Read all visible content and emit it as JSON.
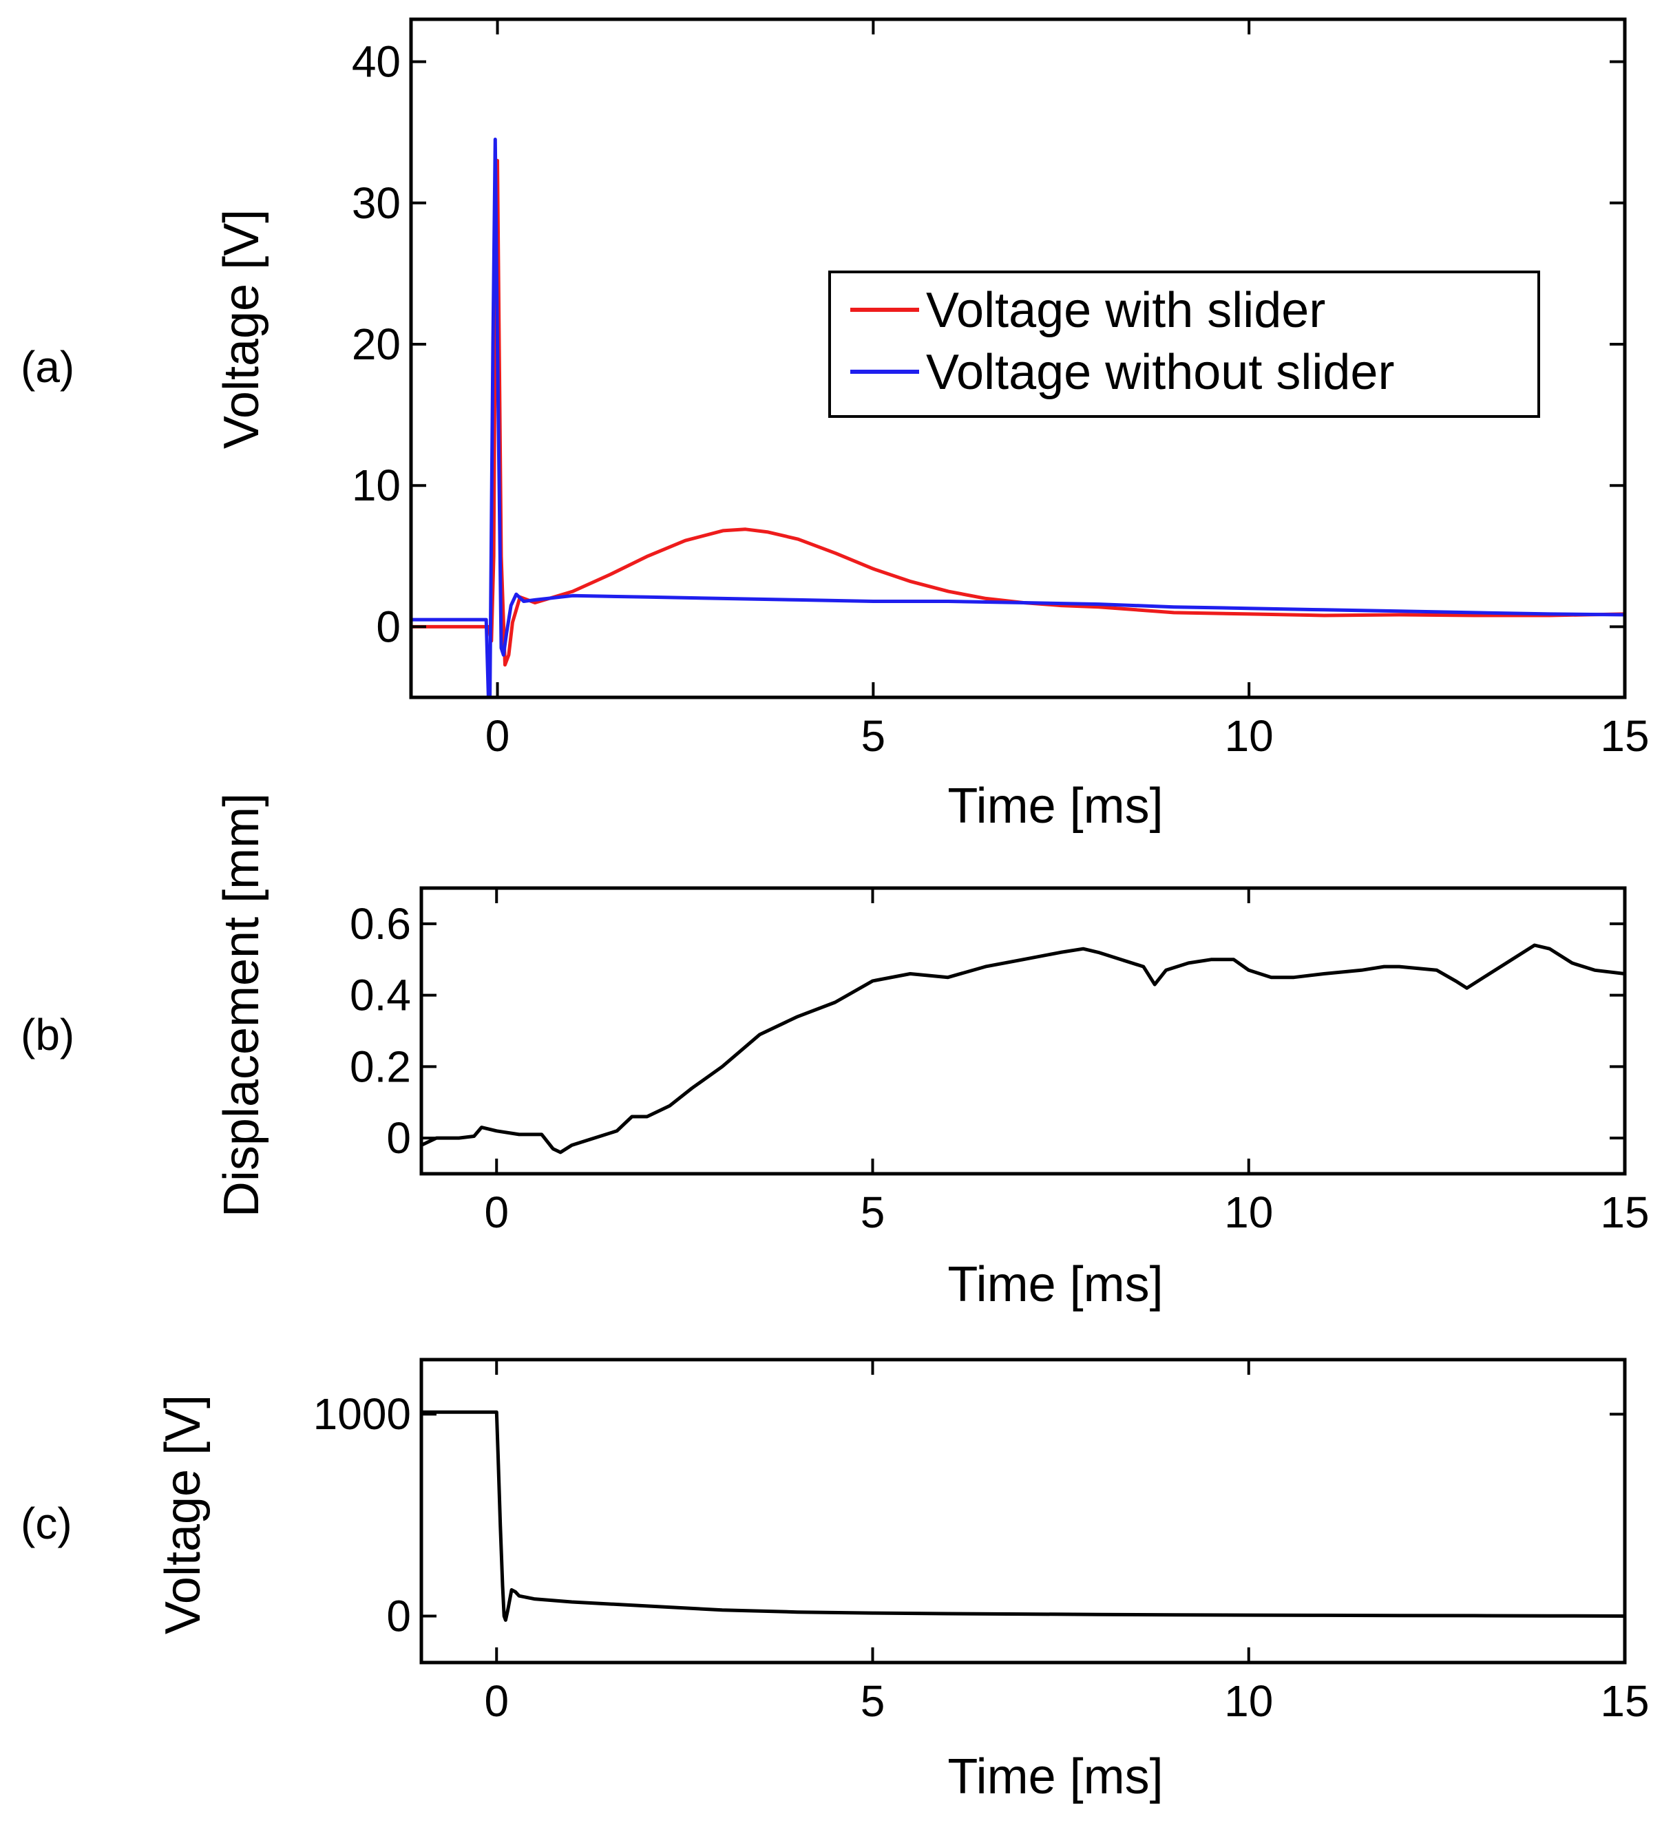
{
  "figure": {
    "panel_labels": [
      "(a)",
      "(b)",
      "(c)"
    ]
  },
  "colors": {
    "axes": "#000000",
    "voltage_with_slider": "#ee1c1c",
    "voltage_without_slider": "#1f1fee",
    "black_trace": "#000000"
  },
  "chart_data": [
    {
      "panel": "(a)",
      "type": "line",
      "title": "",
      "xlabel": "Time [ms]",
      "ylabel": "Voltage [V]",
      "xlim": [
        -1.15,
        15
      ],
      "ylim": [
        -5,
        43
      ],
      "xticks": [
        0,
        5,
        10,
        15
      ],
      "yticks": [
        0,
        10,
        20,
        30,
        40
      ],
      "legend": "right",
      "series": [
        {
          "name": "Voltage with slider",
          "color": "#ee1c1c",
          "x": [
            -1.15,
            -0.12,
            -0.08,
            -0.05,
            -0.02,
            0.0,
            0.05,
            0.1,
            0.15,
            0.2,
            0.3,
            0.5,
            1.0,
            1.5,
            2.0,
            2.5,
            3.0,
            3.3,
            3.6,
            4.0,
            4.5,
            5.0,
            5.5,
            6.0,
            6.5,
            7.0,
            7.5,
            8.0,
            8.5,
            9.0,
            10.0,
            11.0,
            12.0,
            13.0,
            14.0,
            15.0
          ],
          "y": [
            0.0,
            0.0,
            -1.0,
            5.0,
            30.0,
            33.0,
            5.0,
            -2.7,
            -2.0,
            0.3,
            2.1,
            1.7,
            2.5,
            3.7,
            5.0,
            6.1,
            6.8,
            6.9,
            6.7,
            6.2,
            5.2,
            4.1,
            3.2,
            2.5,
            2.0,
            1.7,
            1.5,
            1.4,
            1.2,
            1.0,
            0.9,
            0.8,
            0.85,
            0.8,
            0.8,
            0.9
          ]
        },
        {
          "name": "Voltage without slider",
          "color": "#1f1fee",
          "x": [
            -1.15,
            -0.15,
            -0.12,
            -0.1,
            -0.06,
            -0.03,
            0.0,
            0.05,
            0.08,
            0.12,
            0.18,
            0.25,
            0.35,
            0.5,
            1.0,
            2.0,
            3.0,
            4.0,
            5.0,
            6.0,
            7.0,
            8.0,
            9.0,
            10.0,
            11.0,
            12.0,
            13.0,
            14.0,
            15.0
          ],
          "y": [
            0.5,
            0.5,
            -5.0,
            -5.0,
            20.0,
            34.5,
            20.0,
            -1.5,
            -2.0,
            -0.5,
            1.5,
            2.3,
            1.8,
            1.9,
            2.2,
            2.1,
            2.0,
            1.9,
            1.8,
            1.8,
            1.7,
            1.6,
            1.4,
            1.3,
            1.2,
            1.1,
            1.0,
            0.9,
            0.85
          ]
        }
      ]
    },
    {
      "panel": "(b)",
      "type": "line",
      "title": "",
      "xlabel": "Time [ms]",
      "ylabel": "Displacement [mm]",
      "xlim": [
        -1.0,
        15
      ],
      "ylim": [
        -0.1,
        0.7
      ],
      "xticks": [
        0,
        5,
        10,
        15
      ],
      "yticks": [
        0,
        0.2,
        0.4,
        0.6
      ],
      "ytick_labels": [
        "0",
        "0.2",
        "0.4",
        "0.6"
      ],
      "series": [
        {
          "name": "Displacement",
          "color": "#000000",
          "x": [
            -1.0,
            -0.8,
            -0.5,
            -0.3,
            -0.2,
            0.0,
            0.3,
            0.6,
            0.75,
            0.85,
            1.0,
            1.3,
            1.6,
            1.8,
            2.0,
            2.3,
            2.6,
            3.0,
            3.5,
            4.0,
            4.5,
            5.0,
            5.5,
            6.0,
            6.5,
            7.0,
            7.5,
            7.8,
            8.0,
            8.3,
            8.6,
            8.75,
            8.9,
            9.2,
            9.5,
            9.8,
            10.0,
            10.3,
            10.6,
            11.0,
            11.5,
            11.8,
            12.0,
            12.5,
            12.75,
            12.9,
            13.2,
            13.5,
            13.8,
            14.0,
            14.3,
            14.6,
            15.0
          ],
          "y": [
            -0.02,
            0.0,
            0.0,
            0.005,
            0.03,
            0.02,
            0.01,
            0.01,
            -0.03,
            -0.04,
            -0.02,
            0.0,
            0.02,
            0.06,
            0.06,
            0.09,
            0.14,
            0.2,
            0.29,
            0.34,
            0.38,
            0.44,
            0.46,
            0.45,
            0.48,
            0.5,
            0.52,
            0.53,
            0.52,
            0.5,
            0.48,
            0.43,
            0.47,
            0.49,
            0.5,
            0.5,
            0.47,
            0.45,
            0.45,
            0.46,
            0.47,
            0.48,
            0.48,
            0.47,
            0.44,
            0.42,
            0.46,
            0.5,
            0.54,
            0.53,
            0.49,
            0.47,
            0.46
          ]
        }
      ]
    },
    {
      "panel": "(c)",
      "type": "line",
      "title": "",
      "xlabel": "Time [ms]",
      "ylabel": "Voltage [V]",
      "xlim": [
        -1.0,
        15
      ],
      "ylim": [
        -230,
        1270
      ],
      "xticks": [
        0,
        5,
        10,
        15
      ],
      "yticks": [
        0,
        1000
      ],
      "series": [
        {
          "name": "Voltage",
          "color": "#000000",
          "x": [
            -1.0,
            0.0,
            0.02,
            0.05,
            0.08,
            0.1,
            0.12,
            0.15,
            0.2,
            0.25,
            0.3,
            0.5,
            1.0,
            2.0,
            3.0,
            4.0,
            5.0,
            6.0,
            7.0,
            8.0,
            9.0,
            10.0,
            11.0,
            12.0,
            13.0,
            14.0,
            15.0
          ],
          "y": [
            1010,
            1010,
            800,
            450,
            150,
            0,
            -20,
            30,
            130,
            120,
            100,
            85,
            70,
            50,
            30,
            20,
            15,
            12,
            10,
            8,
            6,
            5,
            4,
            3,
            2,
            1,
            0
          ]
        }
      ]
    }
  ]
}
